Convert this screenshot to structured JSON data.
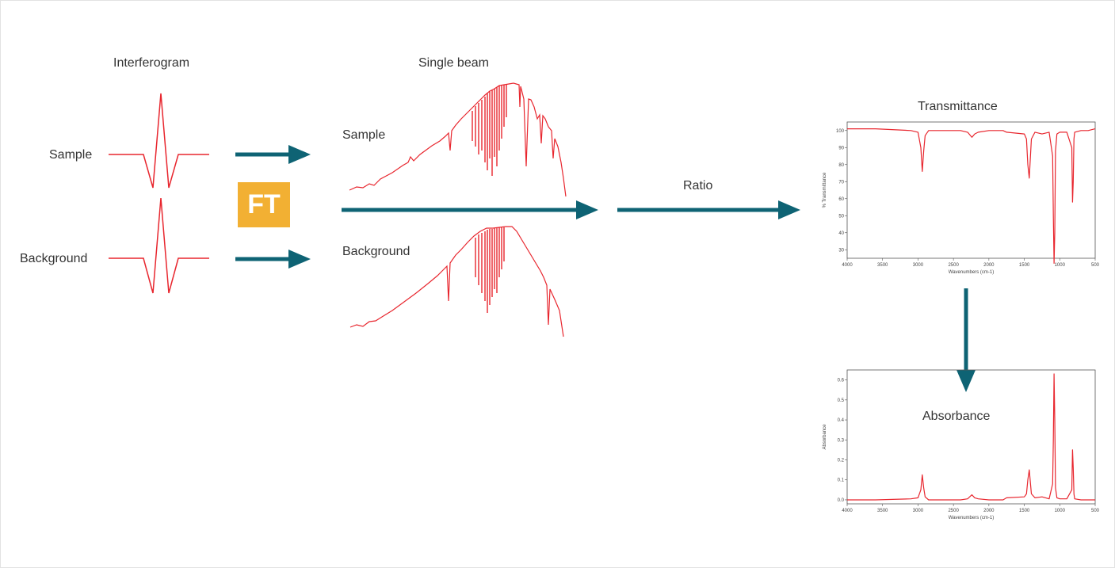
{
  "labels": {
    "interferogram": "Interferogram",
    "single_beam": "Single beam",
    "sample_left": "Sample",
    "background_left": "Background",
    "sample_beam": "Sample",
    "background_beam": "Background",
    "ft": "FT",
    "ratio": "Ratio",
    "transmittance": "Transmittance",
    "absorbance": "Absorbance"
  },
  "colors": {
    "trace": "#e8262e",
    "arrow": "#0e6374",
    "ft_box": "#f2b033"
  },
  "chart_data": [
    {
      "type": "line",
      "title": "Transmittance",
      "xlabel": "Wavenumbers (cm-1)",
      "ylabel": "% Transmittance",
      "x_ticks": [
        "4000",
        "3500",
        "3000",
        "2500",
        "2000",
        "1500",
        "1000",
        "500"
      ],
      "y_ticks": [
        "100",
        "90",
        "80",
        "70",
        "60",
        "50",
        "40",
        "30"
      ],
      "xlim": [
        4000,
        500
      ],
      "ylim": [
        25,
        105
      ],
      "x": [
        4000,
        3600,
        3100,
        3000,
        2960,
        2940,
        2920,
        2900,
        2850,
        2700,
        2400,
        2300,
        2240,
        2200,
        2150,
        2000,
        1800,
        1750,
        1500,
        1470,
        1450,
        1430,
        1400,
        1350,
        1250,
        1150,
        1100,
        1090,
        1080,
        1070,
        1060,
        1040,
        1000,
        900,
        830,
        820,
        810,
        800,
        790,
        700,
        600,
        500
      ],
      "values": [
        101,
        101,
        100,
        99,
        90,
        76,
        88,
        97,
        100,
        100,
        100,
        99,
        96,
        98,
        99,
        100,
        100,
        99,
        98,
        95,
        80,
        72,
        95,
        99,
        98,
        99,
        85,
        50,
        22,
        40,
        88,
        98,
        99,
        99,
        90,
        58,
        70,
        95,
        99,
        100,
        100,
        101
      ]
    },
    {
      "type": "line",
      "title": "Absorbance",
      "xlabel": "Wavenumbers (cm-1)",
      "ylabel": "Absorbance",
      "x_ticks": [
        "4000",
        "3500",
        "3000",
        "2500",
        "2000",
        "1500",
        "1000",
        "500"
      ],
      "y_ticks": [
        "0.0",
        "0.1",
        "0.2",
        "0.3",
        "0.4",
        "0.5",
        "0.6"
      ],
      "xlim": [
        4000,
        500
      ],
      "ylim": [
        -0.02,
        0.65
      ],
      "x": [
        4000,
        3600,
        3100,
        3000,
        2960,
        2940,
        2920,
        2900,
        2850,
        2700,
        2400,
        2300,
        2240,
        2200,
        2150,
        2000,
        1800,
        1750,
        1500,
        1470,
        1450,
        1430,
        1400,
        1350,
        1250,
        1150,
        1100,
        1090,
        1080,
        1070,
        1060,
        1040,
        1000,
        900,
        830,
        820,
        810,
        800,
        790,
        700,
        600,
        500
      ],
      "values": [
        0.0,
        0.0,
        0.005,
        0.01,
        0.05,
        0.125,
        0.06,
        0.015,
        0.0,
        0.0,
        0.0,
        0.005,
        0.025,
        0.01,
        0.005,
        0.0,
        0.0,
        0.01,
        0.015,
        0.03,
        0.1,
        0.15,
        0.03,
        0.01,
        0.015,
        0.005,
        0.08,
        0.3,
        0.63,
        0.4,
        0.06,
        0.01,
        0.005,
        0.005,
        0.05,
        0.25,
        0.16,
        0.03,
        0.005,
        0.0,
        0.0,
        0.0
      ]
    }
  ]
}
